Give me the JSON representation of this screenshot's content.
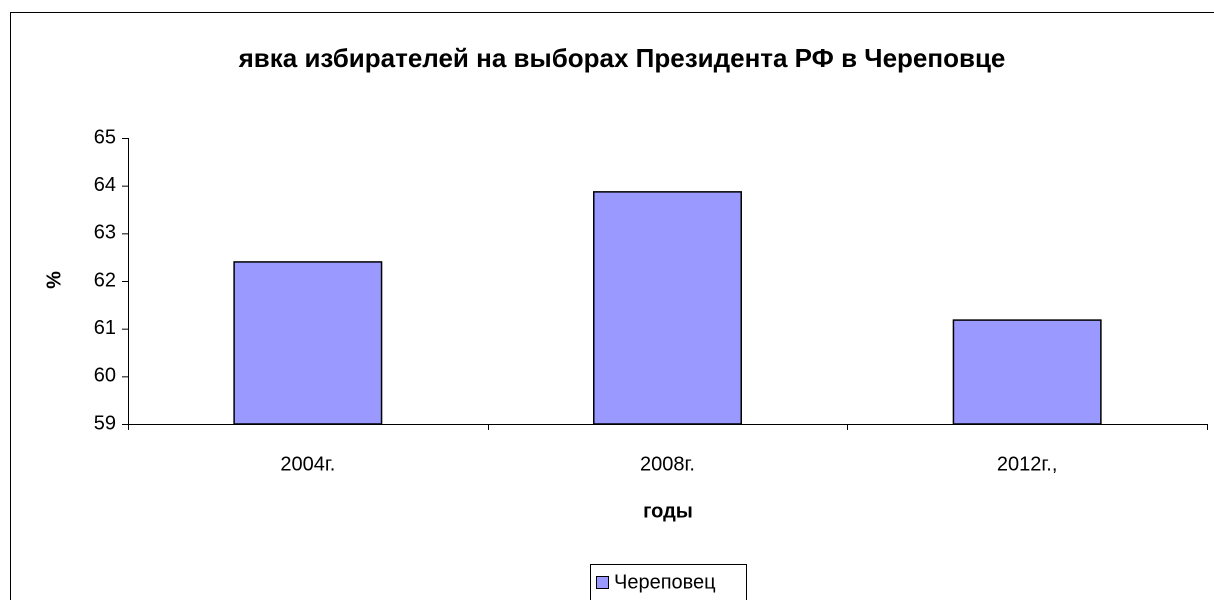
{
  "chart_data": {
    "type": "bar",
    "title": "явка избирателей на выборах Президента РФ в Череповце",
    "x_label": "годы",
    "y_label": "%",
    "categories": [
      "2004г.",
      "2008г.",
      "2012г.,"
    ],
    "series": [
      {
        "name": "Череповец",
        "color": "#9999ff",
        "values": [
          62.4,
          63.87,
          61.18
        ]
      }
    ],
    "ylim": [
      59,
      65
    ],
    "yticks": [
      59,
      60,
      61,
      62,
      63,
      64,
      65
    ],
    "grid": false,
    "legend": "bottom"
  }
}
